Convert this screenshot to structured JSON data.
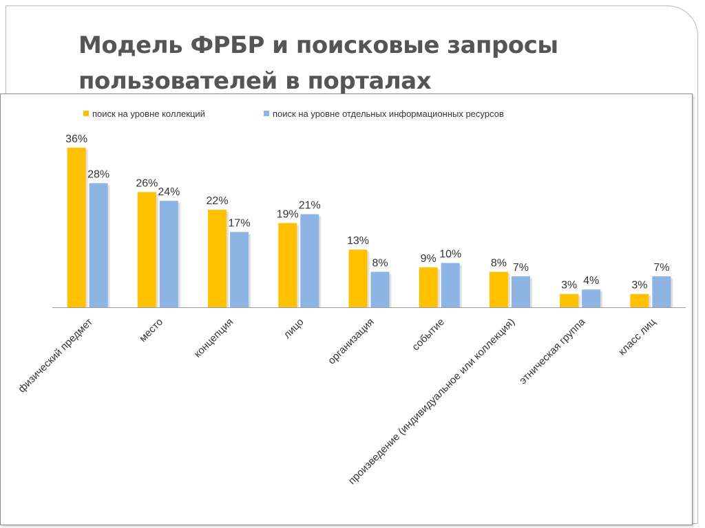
{
  "slide": {
    "title_line1": "Модель ФРБР и поисковые запросы",
    "title_line2": "пользователей в порталах"
  },
  "colors": {
    "series1": "#FFC000",
    "series2": "#8DB4E2",
    "axis": "#9a9a9a",
    "title": "#555555"
  },
  "chart_data": {
    "type": "bar",
    "categories": [
      "физический предмет",
      "место",
      "концепция",
      "лицо",
      "организация",
      "событие",
      "произведение (индивидуальное или коллекция)",
      "этническая группа",
      "класс лиц"
    ],
    "series": [
      {
        "name": "поиск на уровне коллекций",
        "values": [
          36,
          26,
          22,
          19,
          13,
          9,
          8,
          3,
          3
        ],
        "color": "#FFC000"
      },
      {
        "name": "поиск на уровне отдельных информационных ресурсов",
        "values": [
          28,
          24,
          17,
          21,
          8,
          10,
          7,
          4,
          7
        ],
        "color": "#8DB4E2"
      }
    ],
    "value_suffix": "%",
    "ylim": [
      0,
      40
    ],
    "grid": false,
    "legend": "top-left",
    "data_labels": true,
    "x_tick_rotation": "-45deg"
  }
}
